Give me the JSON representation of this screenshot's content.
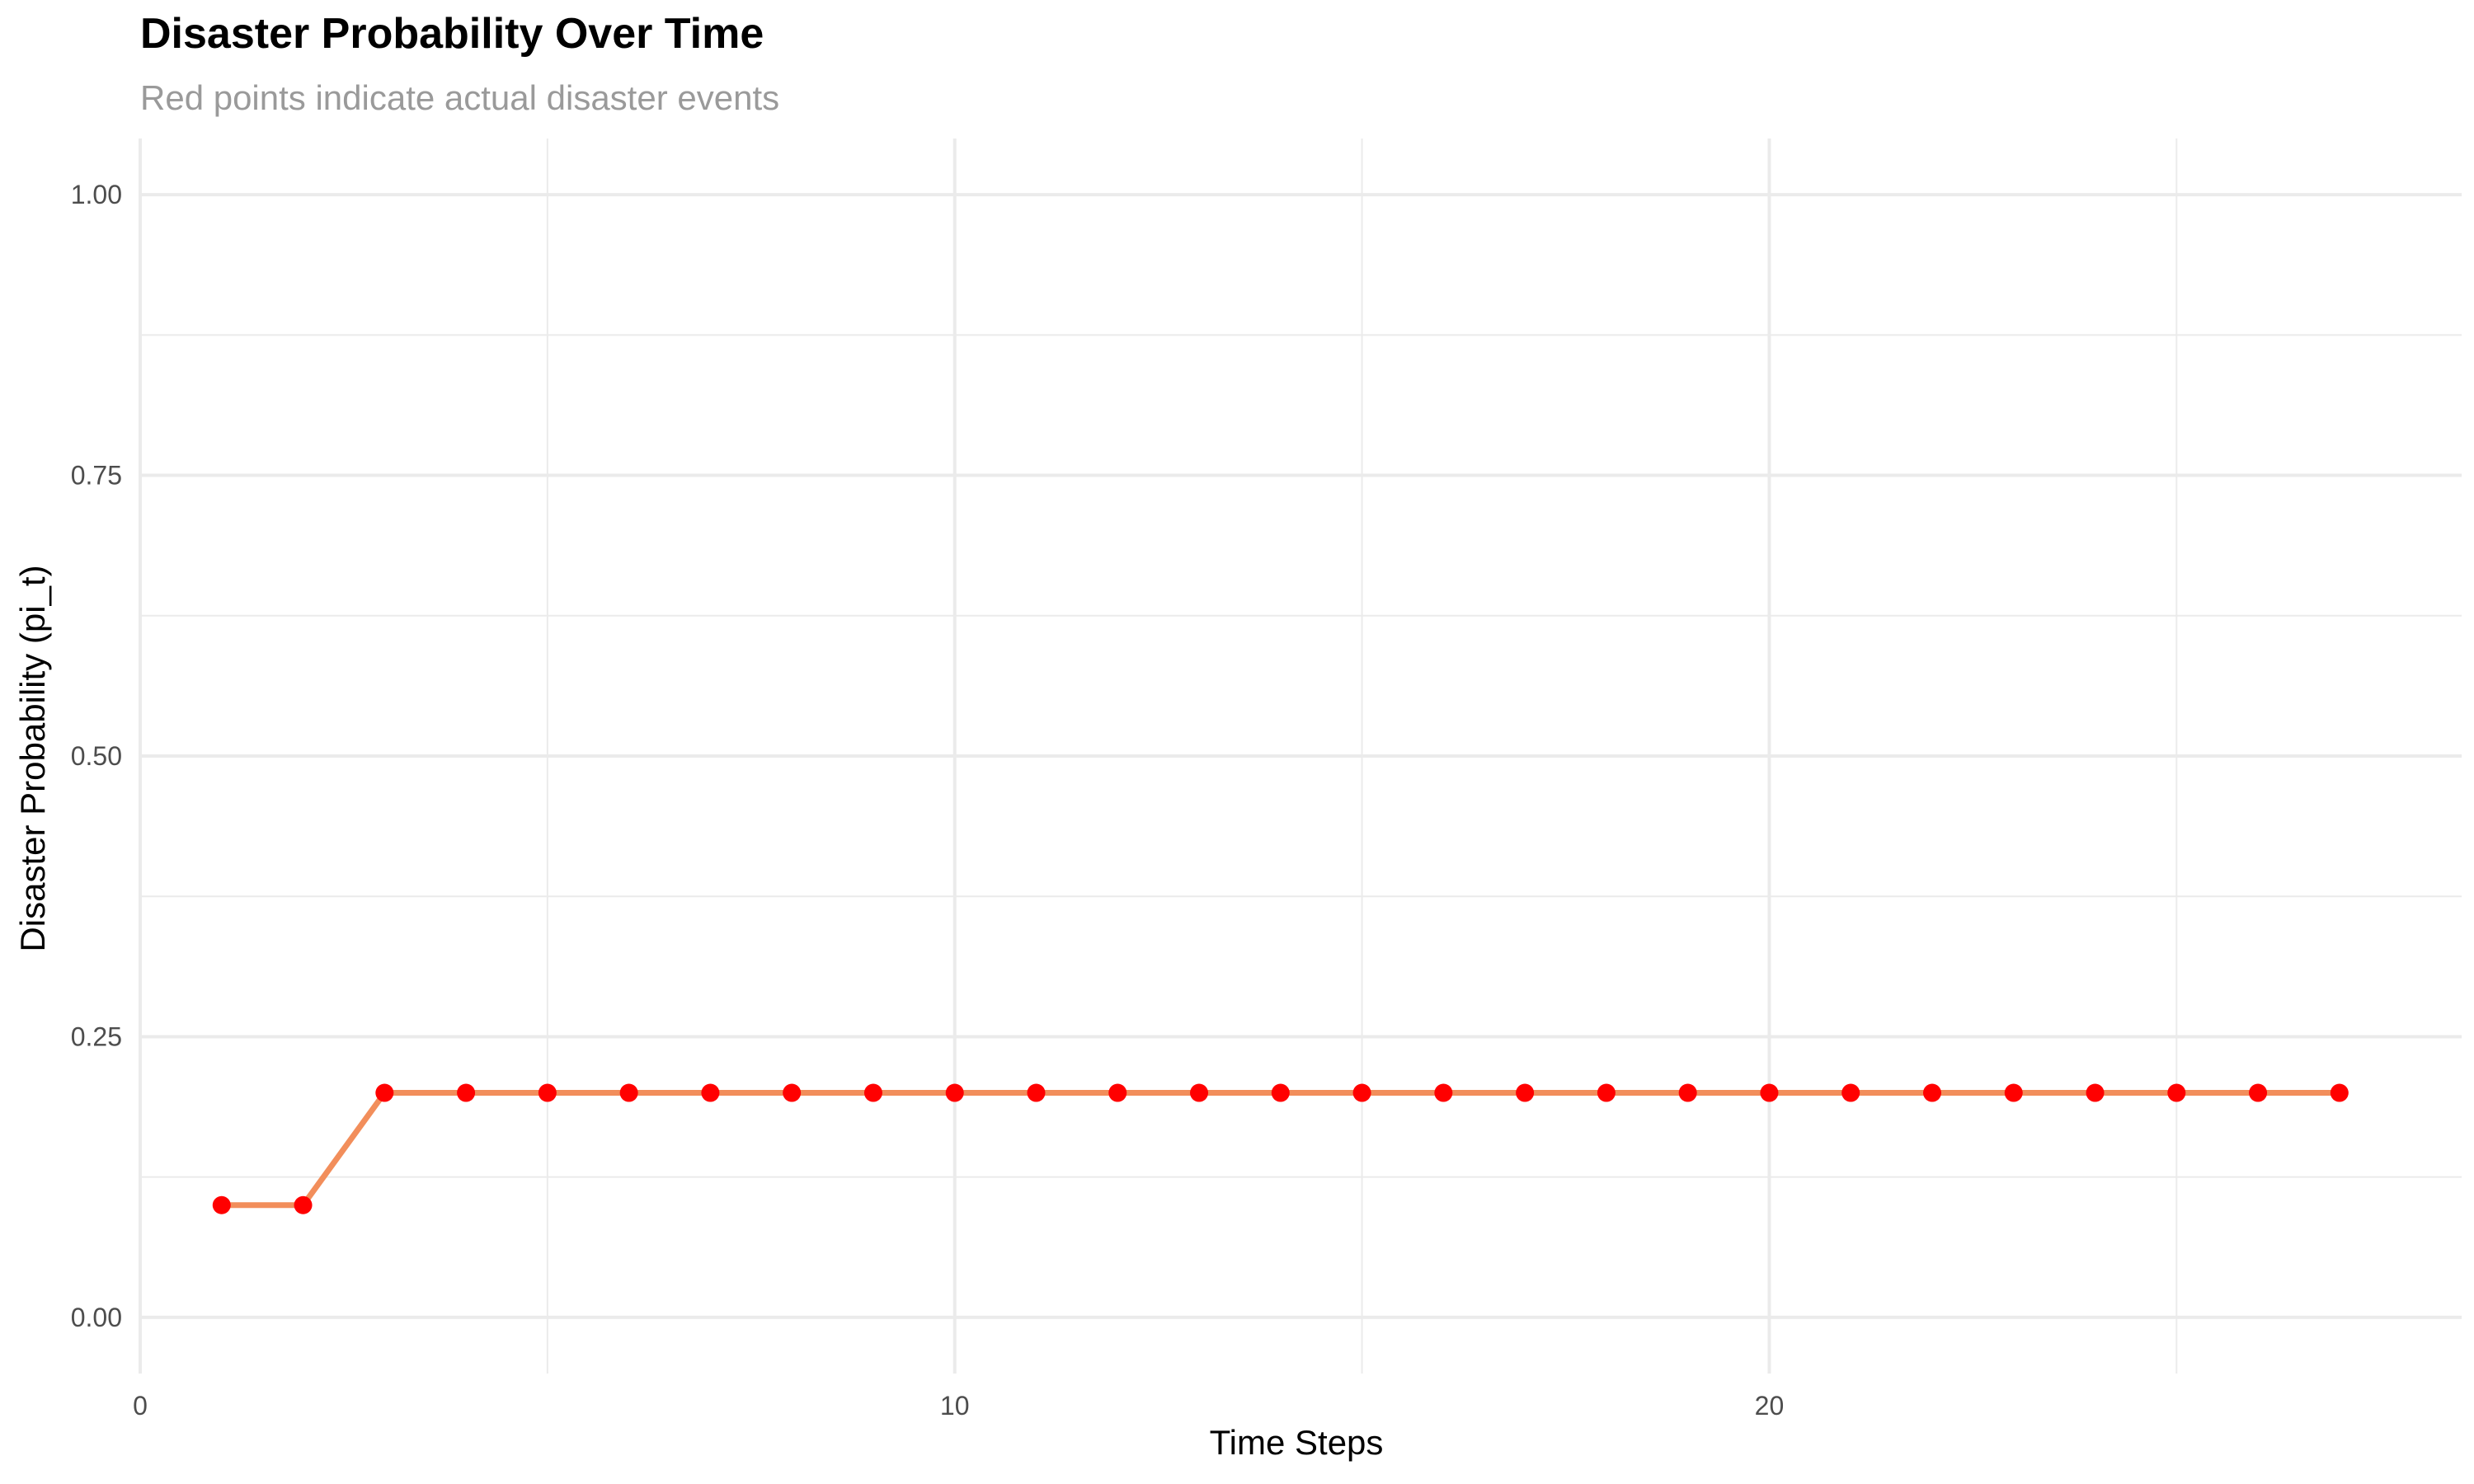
{
  "chart_data": {
    "type": "line",
    "title": "Disaster Probability Over Time",
    "subtitle": "Red points indicate actual disaster events",
    "xlabel": "Time Steps",
    "ylabel": "Disaster Probability (pi_t)",
    "xlim": [
      0,
      28.5
    ],
    "ylim": [
      -0.05,
      1.05
    ],
    "x_ticks": [
      0,
      10,
      20
    ],
    "x_tick_labels": [
      "0",
      "10",
      "20"
    ],
    "x_minor_ticks": [
      5,
      15,
      25
    ],
    "y_ticks": [
      0,
      0.25,
      0.5,
      0.75,
      1.0
    ],
    "y_tick_labels": [
      "0.00",
      "0.25",
      "0.50",
      "0.75",
      "1.00"
    ],
    "y_minor_ticks": [
      0.125,
      0.375,
      0.625,
      0.875
    ],
    "grid": true,
    "legend": "none",
    "colors": {
      "line": "#f28e5b",
      "points": "#ff0000",
      "grid": "#ebebeb"
    },
    "x": [
      1,
      2,
      3,
      4,
      5,
      6,
      7,
      8,
      9,
      10,
      11,
      12,
      13,
      14,
      15,
      16,
      17,
      18,
      19,
      20,
      21,
      22,
      23,
      24,
      25,
      26,
      27
    ],
    "series": [
      {
        "values": [
          0.1,
          0.1,
          0.2,
          0.2,
          0.2,
          0.2,
          0.2,
          0.2,
          0.2,
          0.2,
          0.2,
          0.2,
          0.2,
          0.2,
          0.2,
          0.2,
          0.2,
          0.2,
          0.2,
          0.2,
          0.2,
          0.2,
          0.2,
          0.2,
          0.2,
          0.2,
          0.2
        ]
      }
    ],
    "disaster_events_x": [
      1,
      2,
      3,
      4,
      5,
      6,
      7,
      8,
      9,
      10,
      11,
      12,
      13,
      14,
      15,
      16,
      17,
      18,
      19,
      20,
      21,
      22,
      23,
      24,
      25,
      26,
      27
    ]
  }
}
